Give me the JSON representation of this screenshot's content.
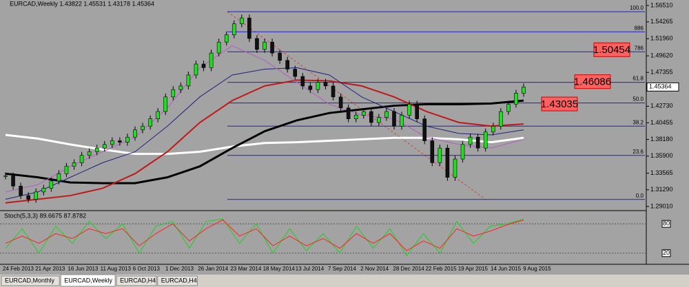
{
  "window_title": "EURCAD,Weekly  1.43822 1.45531 1.43178 1.45364",
  "chart": {
    "type": "candlestick",
    "ylim": [
      1.2854,
      1.5726
    ],
    "yticks": [
      {
        "value": 1.5651,
        "label": "1.56510"
      },
      {
        "value": 1.54265,
        "label": "1.54265"
      },
      {
        "value": 1.5196,
        "label": "1.51960"
      },
      {
        "value": 1.4962,
        "label": "1.49620"
      },
      {
        "value": 1.47355,
        "label": "1.47355"
      },
      {
        "value": 1.4273,
        "label": "1.42730"
      },
      {
        "value": 1.40455,
        "label": "1.40455"
      },
      {
        "value": 1.3818,
        "label": "1.38180"
      },
      {
        "value": 1.359,
        "label": "1.35900"
      },
      {
        "value": 1.33565,
        "label": "1.33565"
      },
      {
        "value": 1.3129,
        "label": "1.31290"
      },
      {
        "value": 1.2901,
        "label": "1.29010"
      }
    ],
    "dates": [
      "24 Feb 2013",
      "21 Apr 2013",
      "16 Jun 2013",
      "11 Aug 2013",
      "6 Oct 2013",
      "1 Dec 2013",
      "26 Jan 2014",
      "23 Mar 2014",
      "18 May 2014",
      "13 Jul 2014",
      "7 Sep 2014",
      "2 Nov 2014",
      "28 Dec 2014",
      "22 Feb 2015",
      "19 Apr 2015",
      "14 Jun 2015",
      "9 Aug 2015"
    ],
    "closes": [
      1.332,
      1.318,
      1.305,
      1.3,
      1.31,
      1.315,
      1.325,
      1.335,
      1.345,
      1.35,
      1.36,
      1.365,
      1.37,
      1.375,
      1.38,
      1.378,
      1.385,
      1.395,
      1.4,
      1.41,
      1.42,
      1.44,
      1.45,
      1.455,
      1.47,
      1.485,
      1.48,
      1.5,
      1.515,
      1.525,
      1.54,
      1.548,
      1.52,
      1.505,
      1.515,
      1.5,
      1.49,
      1.478,
      1.468,
      1.455,
      1.45,
      1.46,
      1.455,
      1.44,
      1.425,
      1.41,
      1.415,
      1.42,
      1.405,
      1.412,
      1.42,
      1.4,
      1.415,
      1.43,
      1.41,
      1.38,
      1.35,
      1.37,
      1.33,
      1.355,
      1.375,
      1.385,
      1.37,
      1.392,
      1.4,
      1.42,
      1.43,
      1.445,
      1.45364
    ],
    "averages": [
      {
        "color": "#ffffff",
        "values": [
          1.388,
          1.383,
          1.375,
          1.368,
          1.362,
          1.362,
          1.365,
          1.372,
          1.377,
          1.378,
          1.38,
          1.382,
          1.384,
          1.384,
          1.382,
          1.378,
          1.384
        ]
      },
      {
        "color": "#000000",
        "values": [
          1.335,
          1.33,
          1.323,
          1.322,
          1.322,
          1.33,
          1.345,
          1.37,
          1.393,
          1.408,
          1.418,
          1.423,
          1.428,
          1.43,
          1.43,
          1.431,
          1.435
        ]
      },
      {
        "color": "#c01818",
        "values": [
          1.295,
          1.3,
          1.305,
          1.315,
          1.335,
          1.365,
          1.405,
          1.435,
          1.455,
          1.463,
          1.462,
          1.455,
          1.44,
          1.42,
          1.405,
          1.4,
          1.403
        ]
      },
      {
        "color": "#20207a",
        "values": [
          1.3,
          1.31,
          1.33,
          1.35,
          1.365,
          1.4,
          1.44,
          1.47,
          1.478,
          1.48,
          1.47,
          1.44,
          1.42,
          1.4,
          1.39,
          1.388,
          1.395
        ]
      },
      {
        "color": "#b060c0",
        "values": [
          1.31,
          1.32,
          1.345,
          1.365,
          1.385,
          1.425,
          1.48,
          1.51,
          1.49,
          1.46,
          1.43,
          1.415,
          1.41,
          1.385,
          1.375,
          1.37,
          1.382
        ]
      }
    ],
    "fib_levels": [
      {
        "label": "100.0",
        "value": 1.5566
      },
      {
        "label": "886",
        "value": 1.529
      },
      {
        "label": "786",
        "value": 1.5018
      },
      {
        "label": "61.8",
        "value": 1.46
      },
      {
        "label": "50.0",
        "value": 1.4317
      },
      {
        "label": "38.2",
        "value": 1.4
      },
      {
        "label": "23.6",
        "value": 1.36
      },
      {
        "label": "0.0",
        "value": 1.2998
      }
    ],
    "price_boxes": [
      1.50454,
      1.46086,
      1.43035
    ],
    "current_price": 1.45364
  },
  "stoch": {
    "label": "Stoch(5,3,3) 89.6675 87.8782",
    "ylim": [
      0,
      100
    ],
    "levels": [
      80,
      20
    ],
    "k": [
      30,
      70,
      20,
      75,
      40,
      85,
      50,
      80,
      20,
      75,
      85,
      30,
      85,
      90,
      40,
      80,
      20,
      70,
      25,
      60,
      20,
      75,
      30,
      70,
      15,
      60,
      20,
      85,
      40,
      75,
      80,
      89.6675
    ],
    "d": [
      40,
      55,
      40,
      60,
      50,
      70,
      60,
      70,
      35,
      60,
      80,
      45,
      70,
      88,
      55,
      70,
      35,
      55,
      35,
      50,
      30,
      60,
      40,
      60,
      25,
      45,
      30,
      70,
      55,
      65,
      78,
      87.8782
    ]
  },
  "tabs": [
    "EURCAD,Monthly",
    "EURCAD,Weekly",
    "EURCAD,H4",
    "EURCAD,H4"
  ]
}
